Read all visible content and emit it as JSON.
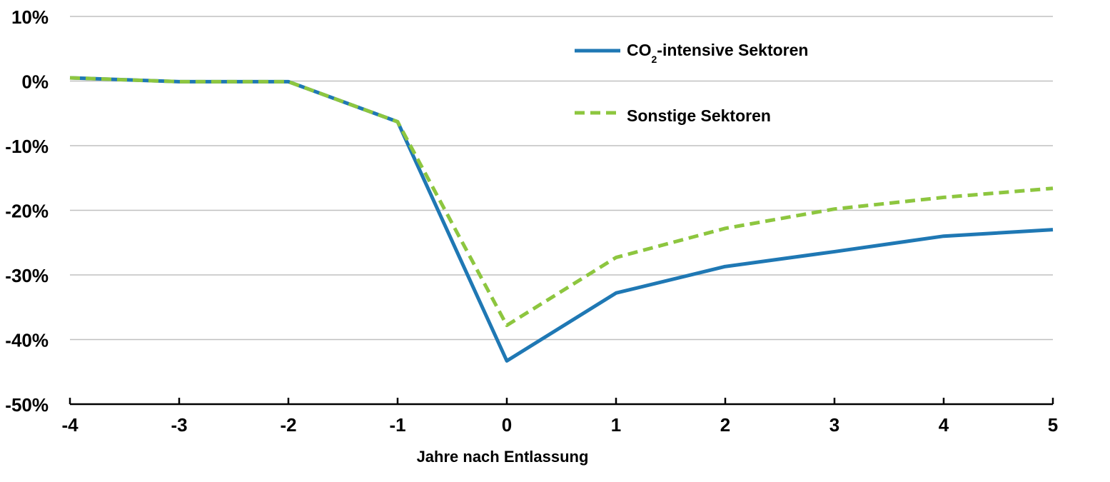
{
  "chart_data": {
    "type": "line",
    "title": "",
    "xlabel": "Jahre nach Entlassung",
    "ylabel": "",
    "x": [
      -4,
      -3,
      -2,
      -1,
      0,
      1,
      2,
      3,
      4,
      5
    ],
    "x_tick_labels": [
      "-4",
      "-3",
      "-2",
      "-1",
      "0",
      "1",
      "2",
      "3",
      "4",
      "5"
    ],
    "y_tick_labels": [
      "10%",
      "0%",
      "-10%",
      "-20%",
      "-30%",
      "-40%",
      "-50%"
    ],
    "y_ticks": [
      10,
      0,
      -10,
      -20,
      -30,
      -40,
      -50
    ],
    "ylim": [
      -50,
      10
    ],
    "xlim": [
      -4,
      5
    ],
    "grid": "horizontal",
    "legend_position": "top-center",
    "series": [
      {
        "name_main": "CO",
        "name_sub": "2",
        "name_rest": "-intensive Sektoren",
        "values": [
          0.5,
          -0.1,
          -0.1,
          -6.3,
          -43.3,
          -32.8,
          -28.7,
          -26.4,
          -24.0,
          -23.0
        ],
        "color": "#1f78b4",
        "style": "solid"
      },
      {
        "name": "Sonstige Sektoren",
        "values": [
          0.5,
          -0.1,
          -0.1,
          -6.3,
          -37.8,
          -27.3,
          -22.8,
          -19.8,
          -18.0,
          -16.6
        ],
        "color": "#8dc63f",
        "style": "dashed"
      }
    ]
  }
}
